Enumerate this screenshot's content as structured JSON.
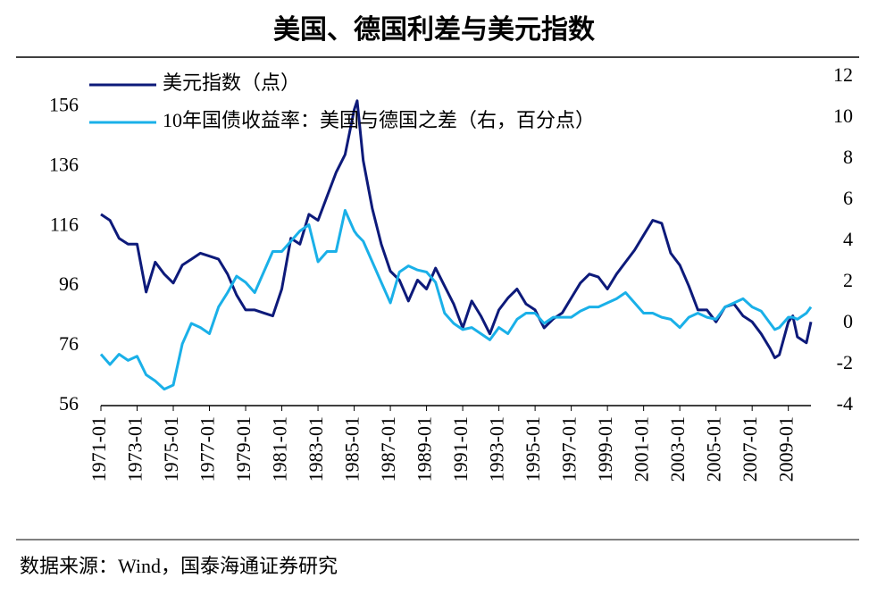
{
  "chart_data": {
    "type": "line",
    "title": "美国、德国利差与美元指数",
    "source": "数据来源：Wind，国泰海通证券研究",
    "x": [
      "1971-01",
      "1971-07",
      "1972-01",
      "1972-07",
      "1973-01",
      "1973-07",
      "1974-01",
      "1974-07",
      "1975-01",
      "1975-07",
      "1976-01",
      "1976-07",
      "1977-01",
      "1977-07",
      "1978-01",
      "1978-07",
      "1979-01",
      "1979-07",
      "1980-01",
      "1980-07",
      "1981-01",
      "1981-07",
      "1982-01",
      "1982-07",
      "1983-01",
      "1983-07",
      "1984-01",
      "1984-07",
      "1985-01",
      "1985-03",
      "1985-07",
      "1986-01",
      "1986-07",
      "1987-01",
      "1987-07",
      "1988-01",
      "1988-07",
      "1989-01",
      "1989-07",
      "1990-01",
      "1990-07",
      "1991-01",
      "1991-07",
      "1992-01",
      "1992-07",
      "1993-01",
      "1993-07",
      "1994-01",
      "1994-07",
      "1995-01",
      "1995-07",
      "1996-01",
      "1996-07",
      "1997-01",
      "1997-07",
      "1998-01",
      "1998-07",
      "1999-01",
      "1999-07",
      "2000-01",
      "2000-07",
      "2001-01",
      "2001-07",
      "2002-01",
      "2002-07",
      "2003-01",
      "2003-07",
      "2004-01",
      "2004-07",
      "2005-01",
      "2005-07",
      "2006-01",
      "2006-07",
      "2007-01",
      "2007-07",
      "2008-01",
      "2008-04",
      "2008-07",
      "2009-01",
      "2009-04",
      "2009-07",
      "2010-01",
      "2010-04"
    ],
    "xlim": [
      "1971-01",
      "2010-04"
    ],
    "xticks": [
      "1971-01",
      "1973-01",
      "1975-01",
      "1977-01",
      "1979-01",
      "1981-01",
      "1983-01",
      "1985-01",
      "1987-01",
      "1989-01",
      "1991-01",
      "1993-01",
      "1995-01",
      "1997-01",
      "1999-01",
      "2001-01",
      "2003-01",
      "2005-01",
      "2007-01",
      "2009-01"
    ],
    "ylim": [
      56,
      166
    ],
    "yticks": [
      56,
      76,
      96,
      116,
      136,
      156
    ],
    "y2lim": [
      -4,
      12
    ],
    "y2ticks": [
      -4,
      -2,
      0,
      2,
      4,
      6,
      8,
      10,
      12
    ],
    "series": [
      {
        "name": "美元指数（点）",
        "color": "#0d1a7a",
        "values": [
          120,
          118,
          112,
          110,
          110,
          94,
          104,
          100,
          97,
          103,
          105,
          107,
          106,
          105,
          100,
          93,
          88,
          88,
          87,
          86,
          95,
          112,
          110,
          120,
          118,
          126,
          134,
          140,
          155,
          158,
          138,
          122,
          110,
          101,
          98,
          91,
          98,
          95,
          102,
          96,
          90,
          82,
          91,
          86,
          80,
          88,
          92,
          95,
          90,
          88,
          82,
          85,
          87,
          92,
          97,
          100,
          99,
          95,
          100,
          104,
          108,
          113,
          118,
          117,
          107,
          103,
          96,
          88,
          88,
          84,
          89,
          90,
          86,
          84,
          80,
          75,
          72,
          73,
          84,
          86,
          79,
          77,
          84
        ]
      },
      {
        "name": "10年国债收益率：美国与德国之差（右，百分点）",
        "color": "#1ab0e8",
        "axis": "y2",
        "values": [
          -1.5,
          -2,
          -1.5,
          -1.8,
          -1.6,
          -2.5,
          -2.8,
          -3.2,
          -3,
          -1,
          0,
          -0.2,
          -0.5,
          0.8,
          1.5,
          2.3,
          2,
          1.5,
          2.5,
          3.5,
          3.5,
          4,
          4.5,
          4.8,
          3,
          3.5,
          3.5,
          5.5,
          4.5,
          4.3,
          4,
          3,
          2,
          1,
          2.5,
          2.8,
          2.6,
          2.5,
          2,
          0.5,
          0,
          -0.3,
          -0.2,
          -0.5,
          -0.8,
          -0.2,
          -0.5,
          0.2,
          0.5,
          0.5,
          0,
          0.3,
          0.3,
          0.3,
          0.6,
          0.8,
          0.8,
          1,
          1.2,
          1.5,
          1,
          0.5,
          0.5,
          0.3,
          0.2,
          -0.2,
          0.3,
          0.5,
          0.3,
          0.2,
          0.8,
          1,
          1.2,
          0.8,
          0.6,
          0,
          -0.3,
          -0.2,
          0.3,
          0.3,
          0.2,
          0.5,
          0.8
        ]
      }
    ]
  }
}
